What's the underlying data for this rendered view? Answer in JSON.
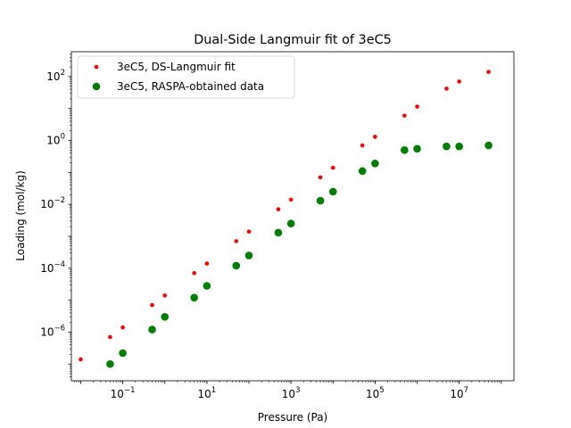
{
  "chart_data": {
    "type": "scatter",
    "title": "Dual-Side Langmuir fit of 3eC5",
    "xlabel": "Pressure (Pa)",
    "ylabel": "Loading (mol/kg)",
    "xscale": "log",
    "yscale": "log",
    "xlim": [
      0.006,
      200000000
    ],
    "ylim": [
      3e-08,
      600
    ],
    "xticks": [
      {
        "value": 0.1,
        "base": "10",
        "exp": "−1"
      },
      {
        "value": 10,
        "base": "10",
        "exp": "1"
      },
      {
        "value": 1000,
        "base": "10",
        "exp": "3"
      },
      {
        "value": 100000,
        "base": "10",
        "exp": "5"
      },
      {
        "value": 10000000,
        "base": "10",
        "exp": "7"
      }
    ],
    "yticks": [
      {
        "value": 1e-06,
        "base": "10",
        "exp": "−6"
      },
      {
        "value": 0.0001,
        "base": "10",
        "exp": "−4"
      },
      {
        "value": 0.01,
        "base": "10",
        "exp": "−2"
      },
      {
        "value": 1,
        "base": "10",
        "exp": "0"
      },
      {
        "value": 100,
        "base": "10",
        "exp": "2"
      }
    ],
    "grid": false,
    "legend_position": "upper-left",
    "series": [
      {
        "name": "3eC5, DS-Langmuir fit",
        "color": "#ff0000",
        "marker": "small-dot",
        "points": [
          [
            0.01,
            1.4e-07
          ],
          [
            0.05,
            7e-07
          ],
          [
            0.1,
            1.4e-06
          ],
          [
            0.5,
            7e-06
          ],
          [
            1,
            1.4e-05
          ],
          [
            5,
            7e-05
          ],
          [
            10,
            0.00014
          ],
          [
            50,
            0.0007
          ],
          [
            100,
            0.0014
          ],
          [
            500,
            0.007
          ],
          [
            1000,
            0.014
          ],
          [
            5000,
            0.07
          ],
          [
            10000,
            0.14
          ],
          [
            50000,
            0.7
          ],
          [
            100000,
            1.3
          ],
          [
            500000,
            6
          ],
          [
            1000000,
            11.5
          ],
          [
            5000000,
            42
          ],
          [
            10000000,
            70
          ],
          [
            50000000,
            140
          ]
        ]
      },
      {
        "name": "3eC5, RASPA-obtained data",
        "color": "#008000",
        "marker": "large-dot",
        "points": [
          [
            0.05,
            1e-07
          ],
          [
            0.1,
            2.2e-07
          ],
          [
            0.5,
            1.2e-06
          ],
          [
            1,
            3e-06
          ],
          [
            5,
            1.2e-05
          ],
          [
            10,
            2.8e-05
          ],
          [
            50,
            0.00012
          ],
          [
            100,
            0.00025
          ],
          [
            500,
            0.0013
          ],
          [
            1000,
            0.0025
          ],
          [
            5000,
            0.013
          ],
          [
            10000,
            0.025
          ],
          [
            50000,
            0.11
          ],
          [
            100000,
            0.19
          ],
          [
            500000,
            0.5
          ],
          [
            1000000,
            0.55
          ],
          [
            5000000,
            0.65
          ],
          [
            10000000,
            0.65
          ],
          [
            50000000,
            0.7
          ]
        ]
      }
    ]
  }
}
